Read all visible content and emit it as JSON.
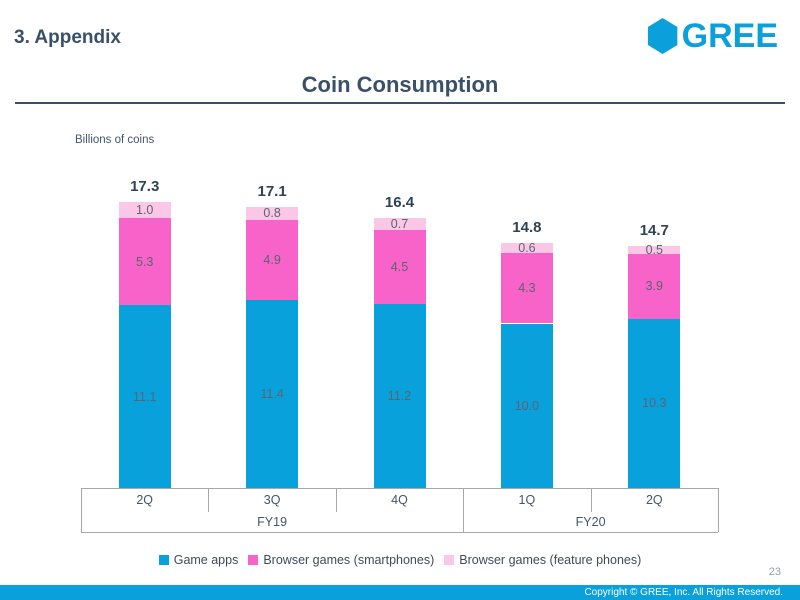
{
  "slide": {
    "section_title": "3. Appendix",
    "logo_text": "GREE",
    "title": "Coin Consumption",
    "units_label": "Billions of coins",
    "page_number": "23",
    "copyright": "Copyright © GREE, Inc. All Rights Reserved."
  },
  "colors": {
    "brand_cyan": "#0aa0db",
    "heading_text": "#3a5069",
    "footer_bar": "#0aa0db",
    "axis_line": "#a8a8a8"
  },
  "chart_data": {
    "type": "bar",
    "stacked": true,
    "title": "Coin Consumption",
    "unit": "Billions of coins",
    "categories": [
      "2Q",
      "3Q",
      "4Q",
      "1Q",
      "2Q"
    ],
    "groups": [
      {
        "label": "FY19",
        "span": 3
      },
      {
        "label": "FY20",
        "span": 2
      }
    ],
    "series": [
      {
        "name": "Game apps",
        "color": "#09a1dc",
        "values": [
          11.1,
          11.4,
          11.2,
          10.0,
          10.3
        ]
      },
      {
        "name": "Browser games (smartphones)",
        "color": "#f763c8",
        "values": [
          5.3,
          4.9,
          4.5,
          4.3,
          3.9
        ]
      },
      {
        "name": "Browser games (feature phones)",
        "color": "#fbc7e6",
        "values": [
          1.0,
          0.8,
          0.7,
          0.6,
          0.5
        ]
      }
    ],
    "totals": [
      17.3,
      17.1,
      16.4,
      14.8,
      14.7
    ],
    "ylim": [
      0,
      17.5
    ],
    "grid": false,
    "legend_position": "bottom"
  }
}
